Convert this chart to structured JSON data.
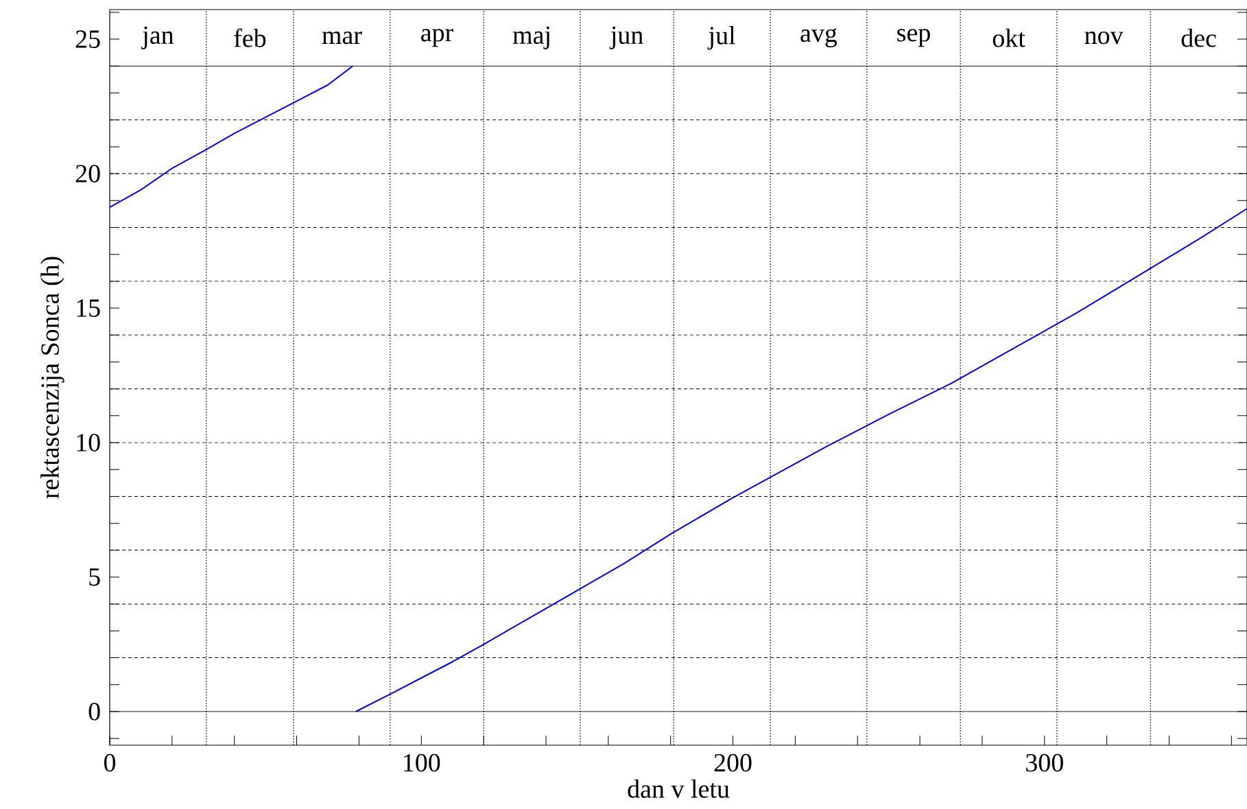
{
  "chart_data": {
    "type": "line",
    "xlabel": "dan v letu",
    "ylabel": "rektascenzija Sonca (h)",
    "xlim": [
      0,
      365
    ],
    "ylim": [
      -1.25,
      26.1
    ],
    "xticks": [
      0,
      {
        "value": 20,
        "label": null
      },
      {
        "value": 40,
        "label": null
      },
      {
        "value": 60,
        "label": null
      },
      {
        "value": 80,
        "label": null
      },
      100,
      {
        "value": 120,
        "label": null
      },
      {
        "value": 140,
        "label": null
      },
      {
        "value": 160,
        "label": null
      },
      {
        "value": 180,
        "label": null
      },
      200,
      {
        "value": 220,
        "label": null
      },
      {
        "value": 240,
        "label": null
      },
      {
        "value": 260,
        "label": null
      },
      {
        "value": 280,
        "label": null
      },
      300,
      {
        "value": 320,
        "label": null
      },
      {
        "value": 340,
        "label": null
      },
      {
        "value": 360,
        "label": null
      }
    ],
    "yticks": [
      {
        "value": -1,
        "label": null
      },
      0,
      {
        "value": 1,
        "label": null
      },
      {
        "value": 2,
        "label": null
      },
      {
        "value": 3,
        "label": null
      },
      {
        "value": 4,
        "label": null
      },
      5,
      {
        "value": 6,
        "label": null
      },
      {
        "value": 7,
        "label": null
      },
      {
        "value": 8,
        "label": null
      },
      {
        "value": 9,
        "label": null
      },
      10,
      {
        "value": 11,
        "label": null
      },
      {
        "value": 12,
        "label": null
      },
      {
        "value": 13,
        "label": null
      },
      {
        "value": 14,
        "label": null
      },
      15,
      {
        "value": 16,
        "label": null
      },
      {
        "value": 17,
        "label": null
      },
      {
        "value": 18,
        "label": null
      },
      {
        "value": 19,
        "label": null
      },
      20,
      {
        "value": 21,
        "label": null
      },
      {
        "value": 22,
        "label": null
      },
      {
        "value": 23,
        "label": null
      },
      {
        "value": 24,
        "label": null
      },
      25,
      {
        "value": 26,
        "label": null
      }
    ],
    "series": [
      {
        "color": "#0000ff",
        "x": [
          0,
          10,
          20,
          31,
          40,
          50,
          60,
          70,
          78
        ],
        "values": [
          18.75,
          19.4,
          20.2,
          20.9,
          21.5,
          22.1,
          22.7,
          23.3,
          24.0
        ]
      },
      {
        "color": "#0000ff",
        "x": [
          79,
          90,
          100,
          110,
          120,
          135,
          150,
          165,
          180,
          200,
          215,
          230,
          250,
          270,
          290,
          310,
          330,
          350,
          365
        ],
        "values": [
          0.0,
          0.65,
          1.25,
          1.85,
          2.5,
          3.5,
          4.5,
          5.5,
          6.6,
          7.95,
          8.9,
          9.85,
          11.05,
          12.2,
          13.5,
          14.8,
          16.2,
          17.6,
          18.7
        ]
      }
    ],
    "ref_lines": [
      {
        "axis": "y",
        "value": 0,
        "line_style": "solid"
      },
      {
        "axis": "y",
        "value": 2,
        "line_style": "dashed"
      },
      {
        "axis": "y",
        "value": 4,
        "line_style": "dashed"
      },
      {
        "axis": "y",
        "value": 6,
        "line_style": "dashed"
      },
      {
        "axis": "y",
        "value": 8,
        "line_style": "dashed"
      },
      {
        "axis": "y",
        "value": 10,
        "line_style": "dashed"
      },
      {
        "axis": "y",
        "value": 12,
        "line_style": "dashed"
      },
      {
        "axis": "y",
        "value": 14,
        "line_style": "dashed"
      },
      {
        "axis": "y",
        "value": 16,
        "line_style": "dashed"
      },
      {
        "axis": "y",
        "value": 18,
        "line_style": "dashed"
      },
      {
        "axis": "y",
        "value": 20,
        "line_style": "dashed"
      },
      {
        "axis": "y",
        "value": 22,
        "line_style": "dashed"
      },
      {
        "axis": "y",
        "value": 24,
        "line_style": "solid"
      },
      {
        "axis": "x",
        "value": 31,
        "line_style": "dotted",
        "label": "jan"
      },
      {
        "axis": "x",
        "value": 59,
        "line_style": "dotted",
        "label": "feb"
      },
      {
        "axis": "x",
        "value": 90,
        "line_style": "dotted",
        "label": "mar"
      },
      {
        "axis": "x",
        "value": 120,
        "line_style": "dotted",
        "label": "apr"
      },
      {
        "axis": "x",
        "value": 151,
        "line_style": "dotted",
        "label": "maj"
      },
      {
        "axis": "x",
        "value": 181,
        "line_style": "dotted",
        "label": "jun"
      },
      {
        "axis": "x",
        "value": 212,
        "line_style": "dotted",
        "label": "jul"
      },
      {
        "axis": "x",
        "value": 243,
        "line_style": "dotted",
        "label": "avg"
      },
      {
        "axis": "x",
        "value": 273,
        "line_style": "dotted",
        "label": "sep"
      },
      {
        "axis": "x",
        "value": 304,
        "line_style": "dotted",
        "label": "okt"
      },
      {
        "axis": "x",
        "value": 334,
        "line_style": "dotted",
        "label": "nov"
      }
    ],
    "annotations": [
      "dec"
    ],
    "line_style": "solid",
    "marker": "none"
  }
}
